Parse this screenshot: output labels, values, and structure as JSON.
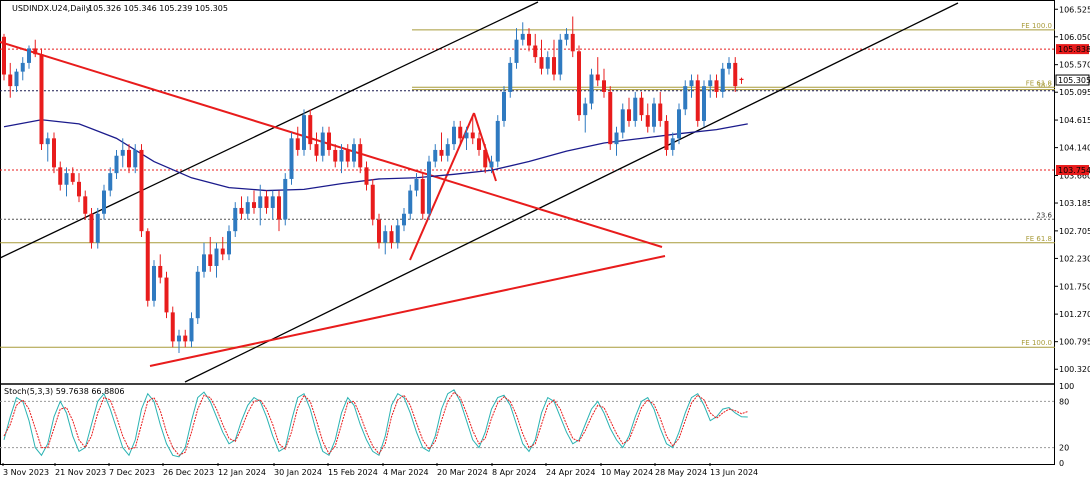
{
  "chart_data": {
    "type": "candlestick",
    "title": "USDINDX.U24,Daily",
    "ohlc_label": "105.326 105.346 105.239 105.305",
    "ylim": [
      100.1,
      106.65
    ],
    "y_ticks": [
      "106.525",
      "106.050",
      "105.570",
      "105.095",
      "104.615",
      "104.140",
      "103.660",
      "103.185",
      "102.705",
      "102.230",
      "101.750",
      "101.270",
      "100.795",
      "100.320"
    ],
    "x_ticks": [
      "3 Nov 2023",
      "21 Nov 2023",
      "7 Dec 2023",
      "26 Dec 2023",
      "12 Jan 2024",
      "30 Jan 2024",
      "15 Feb 2024",
      "4 Mar 2024",
      "20 Mar 2024",
      "8 Apr 2024",
      "24 Apr 2024",
      "10 May 2024",
      "28 May 2024",
      "13 Jun 2024"
    ],
    "price_labels": [
      {
        "text": "105.838",
        "value": 105.838,
        "color": "#e81c1c"
      },
      {
        "text": "105.305",
        "value": 105.305,
        "color": "#000000"
      },
      {
        "text": "103.754",
        "value": 103.754,
        "color": "#e81c1c"
      }
    ],
    "levels": [
      {
        "label": "FE 100.0",
        "value": 106.17,
        "color": "#a89b3a",
        "style": "solid"
      },
      {
        "label": "",
        "value": 105.838,
        "color": "#e81c1c",
        "style": "dotted"
      },
      {
        "label": "FE 61.8",
        "value": 105.18,
        "color": "#a89b3a",
        "style": "solid"
      },
      {
        "label": "38.2",
        "value": 105.14,
        "color": "#a89b3a",
        "style": "solid"
      },
      {
        "label": "",
        "value": 105.12,
        "color": "#1a1a50",
        "style": "dotted"
      },
      {
        "label": "",
        "value": 103.754,
        "color": "#e81c1c",
        "style": "dotted"
      },
      {
        "label": "23.6",
        "value": 102.905,
        "color": "#555555",
        "style": "dotted"
      },
      {
        "label": "FE 61.8",
        "value": 102.5,
        "color": "#a89b3a",
        "style": "solid"
      },
      {
        "label": "FE 100.0",
        "value": 100.7,
        "color": "#a89b3a",
        "style": "solid"
      }
    ],
    "candles": [
      {
        "o": 106.05,
        "h": 106.1,
        "l": 105.3,
        "c": 105.4
      },
      {
        "o": 105.4,
        "h": 105.6,
        "l": 105.0,
        "c": 105.2
      },
      {
        "o": 105.2,
        "h": 105.5,
        "l": 105.1,
        "c": 105.45
      },
      {
        "o": 105.45,
        "h": 105.7,
        "l": 105.3,
        "c": 105.6
      },
      {
        "o": 105.6,
        "h": 105.9,
        "l": 105.5,
        "c": 105.85
      },
      {
        "o": 105.85,
        "h": 106.0,
        "l": 105.7,
        "c": 105.75
      },
      {
        "o": 105.75,
        "h": 105.85,
        "l": 104.1,
        "c": 104.2
      },
      {
        "o": 104.2,
        "h": 104.4,
        "l": 103.9,
        "c": 104.3
      },
      {
        "o": 104.3,
        "h": 104.4,
        "l": 103.7,
        "c": 103.8
      },
      {
        "o": 103.8,
        "h": 103.9,
        "l": 103.4,
        "c": 103.5
      },
      {
        "o": 103.5,
        "h": 103.8,
        "l": 103.3,
        "c": 103.7
      },
      {
        "o": 103.7,
        "h": 103.8,
        "l": 103.5,
        "c": 103.55
      },
      {
        "o": 103.55,
        "h": 103.7,
        "l": 103.2,
        "c": 103.3
      },
      {
        "o": 103.3,
        "h": 103.4,
        "l": 102.9,
        "c": 103.0
      },
      {
        "o": 103.0,
        "h": 103.1,
        "l": 102.4,
        "c": 102.5
      },
      {
        "o": 102.5,
        "h": 103.1,
        "l": 102.4,
        "c": 103.0
      },
      {
        "o": 103.0,
        "h": 103.5,
        "l": 102.9,
        "c": 103.4
      },
      {
        "o": 103.4,
        "h": 103.8,
        "l": 103.3,
        "c": 103.7
      },
      {
        "o": 103.7,
        "h": 104.1,
        "l": 103.6,
        "c": 104.0
      },
      {
        "o": 104.0,
        "h": 104.3,
        "l": 103.8,
        "c": 104.1
      },
      {
        "o": 104.1,
        "h": 104.2,
        "l": 103.7,
        "c": 103.8
      },
      {
        "o": 103.8,
        "h": 104.2,
        "l": 103.7,
        "c": 104.1
      },
      {
        "o": 104.1,
        "h": 104.2,
        "l": 102.6,
        "c": 102.7
      },
      {
        "o": 102.7,
        "h": 102.75,
        "l": 101.4,
        "c": 101.5
      },
      {
        "o": 101.5,
        "h": 102.2,
        "l": 101.4,
        "c": 102.1
      },
      {
        "o": 102.1,
        "h": 102.3,
        "l": 101.8,
        "c": 101.9
      },
      {
        "o": 101.9,
        "h": 102.0,
        "l": 101.2,
        "c": 101.3
      },
      {
        "o": 101.3,
        "h": 101.4,
        "l": 100.7,
        "c": 100.8
      },
      {
        "o": 100.8,
        "h": 101.0,
        "l": 100.6,
        "c": 100.9
      },
      {
        "o": 100.9,
        "h": 101.0,
        "l": 100.7,
        "c": 100.8
      },
      {
        "o": 100.8,
        "h": 101.3,
        "l": 100.7,
        "c": 101.2
      },
      {
        "o": 101.2,
        "h": 102.1,
        "l": 101.1,
        "c": 102.0
      },
      {
        "o": 102.0,
        "h": 102.5,
        "l": 101.9,
        "c": 102.3
      },
      {
        "o": 102.3,
        "h": 102.6,
        "l": 102.0,
        "c": 102.1
      },
      {
        "o": 102.1,
        "h": 102.5,
        "l": 101.9,
        "c": 102.4
      },
      {
        "o": 102.4,
        "h": 102.6,
        "l": 102.2,
        "c": 102.3
      },
      {
        "o": 102.3,
        "h": 102.8,
        "l": 102.2,
        "c": 102.7
      },
      {
        "o": 102.7,
        "h": 103.2,
        "l": 102.6,
        "c": 103.1
      },
      {
        "o": 103.1,
        "h": 103.3,
        "l": 102.9,
        "c": 103.0
      },
      {
        "o": 103.0,
        "h": 103.3,
        "l": 102.9,
        "c": 103.2
      },
      {
        "o": 103.2,
        "h": 103.4,
        "l": 103.0,
        "c": 103.1
      },
      {
        "o": 103.1,
        "h": 103.5,
        "l": 102.8,
        "c": 103.3
      },
      {
        "o": 103.3,
        "h": 103.4,
        "l": 103.0,
        "c": 103.1
      },
      {
        "o": 103.1,
        "h": 103.4,
        "l": 102.9,
        "c": 103.3
      },
      {
        "o": 103.3,
        "h": 103.4,
        "l": 102.7,
        "c": 102.9
      },
      {
        "o": 102.9,
        "h": 103.7,
        "l": 102.8,
        "c": 103.6
      },
      {
        "o": 103.6,
        "h": 104.4,
        "l": 103.5,
        "c": 104.3
      },
      {
        "o": 104.3,
        "h": 104.5,
        "l": 104.0,
        "c": 104.1
      },
      {
        "o": 104.1,
        "h": 104.8,
        "l": 104.0,
        "c": 104.7
      },
      {
        "o": 104.7,
        "h": 104.8,
        "l": 104.1,
        "c": 104.2
      },
      {
        "o": 104.2,
        "h": 104.4,
        "l": 103.9,
        "c": 104.0
      },
      {
        "o": 104.0,
        "h": 104.5,
        "l": 103.9,
        "c": 104.4
      },
      {
        "o": 104.4,
        "h": 104.5,
        "l": 104.0,
        "c": 104.1
      },
      {
        "o": 104.1,
        "h": 104.2,
        "l": 103.8,
        "c": 103.9
      },
      {
        "o": 103.9,
        "h": 104.2,
        "l": 103.7,
        "c": 104.1
      },
      {
        "o": 104.1,
        "h": 104.2,
        "l": 103.8,
        "c": 103.9
      },
      {
        "o": 103.9,
        "h": 104.3,
        "l": 103.8,
        "c": 104.2
      },
      {
        "o": 104.2,
        "h": 104.3,
        "l": 103.7,
        "c": 103.8
      },
      {
        "o": 103.8,
        "h": 103.9,
        "l": 103.4,
        "c": 103.5
      },
      {
        "o": 103.5,
        "h": 103.6,
        "l": 102.8,
        "c": 102.9
      },
      {
        "o": 102.9,
        "h": 103.0,
        "l": 102.4,
        "c": 102.5
      },
      {
        "o": 102.5,
        "h": 102.8,
        "l": 102.3,
        "c": 102.7
      },
      {
        "o": 102.7,
        "h": 102.8,
        "l": 102.4,
        "c": 102.5
      },
      {
        "o": 102.5,
        "h": 102.9,
        "l": 102.4,
        "c": 102.8
      },
      {
        "o": 102.8,
        "h": 103.1,
        "l": 102.7,
        "c": 103.0
      },
      {
        "o": 103.0,
        "h": 103.5,
        "l": 102.9,
        "c": 103.4
      },
      {
        "o": 103.4,
        "h": 103.7,
        "l": 103.3,
        "c": 103.6
      },
      {
        "o": 103.6,
        "h": 103.7,
        "l": 102.9,
        "c": 103.0
      },
      {
        "o": 103.0,
        "h": 104.0,
        "l": 102.9,
        "c": 103.9
      },
      {
        "o": 103.9,
        "h": 104.2,
        "l": 103.8,
        "c": 104.1
      },
      {
        "o": 104.1,
        "h": 104.4,
        "l": 103.9,
        "c": 104.0
      },
      {
        "o": 104.0,
        "h": 104.3,
        "l": 103.9,
        "c": 104.2
      },
      {
        "o": 104.2,
        "h": 104.6,
        "l": 104.1,
        "c": 104.5
      },
      {
        "o": 104.5,
        "h": 104.6,
        "l": 104.2,
        "c": 104.3
      },
      {
        "o": 104.3,
        "h": 104.5,
        "l": 104.1,
        "c": 104.4
      },
      {
        "o": 104.4,
        "h": 104.7,
        "l": 104.2,
        "c": 104.3
      },
      {
        "o": 104.3,
        "h": 104.4,
        "l": 104.0,
        "c": 104.1
      },
      {
        "o": 104.1,
        "h": 104.2,
        "l": 103.7,
        "c": 103.8
      },
      {
        "o": 103.8,
        "h": 104.0,
        "l": 103.7,
        "c": 103.9
      },
      {
        "o": 103.9,
        "h": 104.7,
        "l": 103.8,
        "c": 104.6
      },
      {
        "o": 104.6,
        "h": 105.2,
        "l": 104.5,
        "c": 105.1
      },
      {
        "o": 105.1,
        "h": 105.7,
        "l": 105.0,
        "c": 105.6
      },
      {
        "o": 105.6,
        "h": 106.2,
        "l": 105.5,
        "c": 106.0
      },
      {
        "o": 106.0,
        "h": 106.3,
        "l": 105.9,
        "c": 106.1
      },
      {
        "o": 106.1,
        "h": 106.2,
        "l": 105.8,
        "c": 105.9
      },
      {
        "o": 105.9,
        "h": 106.1,
        "l": 105.6,
        "c": 105.7
      },
      {
        "o": 105.7,
        "h": 106.0,
        "l": 105.4,
        "c": 105.5
      },
      {
        "o": 105.5,
        "h": 105.8,
        "l": 105.4,
        "c": 105.7
      },
      {
        "o": 105.7,
        "h": 106.0,
        "l": 105.3,
        "c": 105.4
      },
      {
        "o": 105.4,
        "h": 106.1,
        "l": 105.3,
        "c": 106.0
      },
      {
        "o": 106.0,
        "h": 106.2,
        "l": 105.9,
        "c": 106.1
      },
      {
        "o": 106.1,
        "h": 106.4,
        "l": 105.7,
        "c": 105.8
      },
      {
        "o": 105.8,
        "h": 105.9,
        "l": 104.6,
        "c": 104.7
      },
      {
        "o": 104.7,
        "h": 105.0,
        "l": 104.4,
        "c": 104.9
      },
      {
        "o": 104.9,
        "h": 105.5,
        "l": 104.8,
        "c": 105.4
      },
      {
        "o": 105.4,
        "h": 105.7,
        "l": 105.2,
        "c": 105.3
      },
      {
        "o": 105.3,
        "h": 105.5,
        "l": 105.0,
        "c": 105.1
      },
      {
        "o": 105.1,
        "h": 105.2,
        "l": 104.1,
        "c": 104.2
      },
      {
        "o": 104.2,
        "h": 104.5,
        "l": 104.0,
        "c": 104.4
      },
      {
        "o": 104.4,
        "h": 104.9,
        "l": 104.3,
        "c": 104.8
      },
      {
        "o": 104.8,
        "h": 105.0,
        "l": 104.5,
        "c": 104.6
      },
      {
        "o": 104.6,
        "h": 105.1,
        "l": 104.5,
        "c": 105.0
      },
      {
        "o": 105.0,
        "h": 105.1,
        "l": 104.6,
        "c": 104.7
      },
      {
        "o": 104.7,
        "h": 104.9,
        "l": 104.4,
        "c": 104.5
      },
      {
        "o": 104.5,
        "h": 105.0,
        "l": 104.4,
        "c": 104.9
      },
      {
        "o": 104.9,
        "h": 105.1,
        "l": 104.5,
        "c": 104.6
      },
      {
        "o": 104.6,
        "h": 104.7,
        "l": 104.0,
        "c": 104.1
      },
      {
        "o": 104.1,
        "h": 104.4,
        "l": 104.0,
        "c": 104.3
      },
      {
        "o": 104.3,
        "h": 104.9,
        "l": 104.2,
        "c": 104.8
      },
      {
        "o": 104.8,
        "h": 105.3,
        "l": 104.7,
        "c": 105.2
      },
      {
        "o": 105.2,
        "h": 105.4,
        "l": 105.0,
        "c": 105.3
      },
      {
        "o": 105.3,
        "h": 105.4,
        "l": 104.5,
        "c": 104.6
      },
      {
        "o": 104.6,
        "h": 105.3,
        "l": 104.5,
        "c": 105.2
      },
      {
        "o": 105.2,
        "h": 105.4,
        "l": 105.0,
        "c": 105.3
      },
      {
        "o": 105.3,
        "h": 105.4,
        "l": 105.0,
        "c": 105.1
      },
      {
        "o": 105.1,
        "h": 105.6,
        "l": 105.0,
        "c": 105.5
      },
      {
        "o": 105.5,
        "h": 105.7,
        "l": 105.4,
        "c": 105.6
      },
      {
        "o": 105.6,
        "h": 105.7,
        "l": 105.1,
        "c": 105.2
      },
      {
        "o": 105.326,
        "h": 105.346,
        "l": 105.239,
        "c": 105.305
      }
    ],
    "ma": [
      [
        0,
        104.5
      ],
      [
        6,
        104.62
      ],
      [
        12,
        104.55
      ],
      [
        18,
        104.3
      ],
      [
        24,
        103.9
      ],
      [
        30,
        103.62
      ],
      [
        36,
        103.45
      ],
      [
        42,
        103.4
      ],
      [
        48,
        103.42
      ],
      [
        54,
        103.52
      ],
      [
        60,
        103.6
      ],
      [
        66,
        103.62
      ],
      [
        72,
        103.68
      ],
      [
        78,
        103.75
      ],
      [
        84,
        103.9
      ],
      [
        90,
        104.08
      ],
      [
        96,
        104.22
      ],
      [
        102,
        104.3
      ],
      [
        108,
        104.38
      ],
      [
        114,
        104.45
      ],
      [
        119,
        104.55
      ]
    ],
    "stoch": {
      "label": "Stoch(5,3,3) 59.7638 66.8806",
      "ylim": [
        0,
        100
      ],
      "ticks": [
        "100",
        "80",
        "20",
        "0"
      ],
      "levels": [
        80,
        20
      ],
      "k": [
        30,
        60,
        85,
        80,
        55,
        20,
        10,
        25,
        60,
        80,
        65,
        35,
        15,
        20,
        50,
        80,
        90,
        70,
        45,
        20,
        10,
        30,
        70,
        90,
        80,
        50,
        25,
        10,
        8,
        20,
        55,
        85,
        92,
        80,
        60,
        40,
        25,
        30,
        55,
        75,
        85,
        80,
        60,
        35,
        15,
        20,
        55,
        85,
        90,
        70,
        40,
        15,
        10,
        30,
        65,
        85,
        75,
        50,
        30,
        15,
        10,
        35,
        75,
        90,
        85,
        65,
        40,
        20,
        15,
        35,
        70,
        90,
        95,
        80,
        55,
        30,
        20,
        40,
        70,
        85,
        88,
        75,
        50,
        25,
        15,
        30,
        65,
        85,
        80,
        60,
        40,
        25,
        30,
        50,
        70,
        80,
        65,
        45,
        30,
        20,
        35,
        60,
        80,
        85,
        70,
        45,
        25,
        20,
        40,
        65,
        85,
        90,
        75,
        55,
        60,
        70,
        72,
        65,
        60,
        59.76
      ],
      "d": [
        35,
        50,
        75,
        82,
        70,
        45,
        20,
        20,
        45,
        70,
        72,
        55,
        30,
        20,
        35,
        65,
        85,
        82,
        60,
        35,
        18,
        20,
        50,
        80,
        85,
        68,
        40,
        20,
        10,
        14,
        40,
        70,
        88,
        85,
        70,
        50,
        32,
        28,
        45,
        65,
        80,
        82,
        70,
        50,
        25,
        18,
        40,
        72,
        88,
        80,
        55,
        28,
        12,
        22,
        50,
        78,
        80,
        62,
        40,
        22,
        12,
        25,
        60,
        82,
        88,
        75,
        52,
        30,
        18,
        28,
        55,
        80,
        92,
        85,
        65,
        42,
        25,
        32,
        58,
        78,
        86,
        80,
        62,
        38,
        20,
        25,
        50,
        75,
        82,
        70,
        50,
        32,
        28,
        42,
        60,
        75,
        72,
        55,
        38,
        25,
        30,
        50,
        72,
        82,
        76,
        58,
        35,
        22,
        32,
        55,
        78,
        88,
        82,
        65,
        58,
        65,
        70,
        68,
        64,
        66.88
      ]
    }
  }
}
